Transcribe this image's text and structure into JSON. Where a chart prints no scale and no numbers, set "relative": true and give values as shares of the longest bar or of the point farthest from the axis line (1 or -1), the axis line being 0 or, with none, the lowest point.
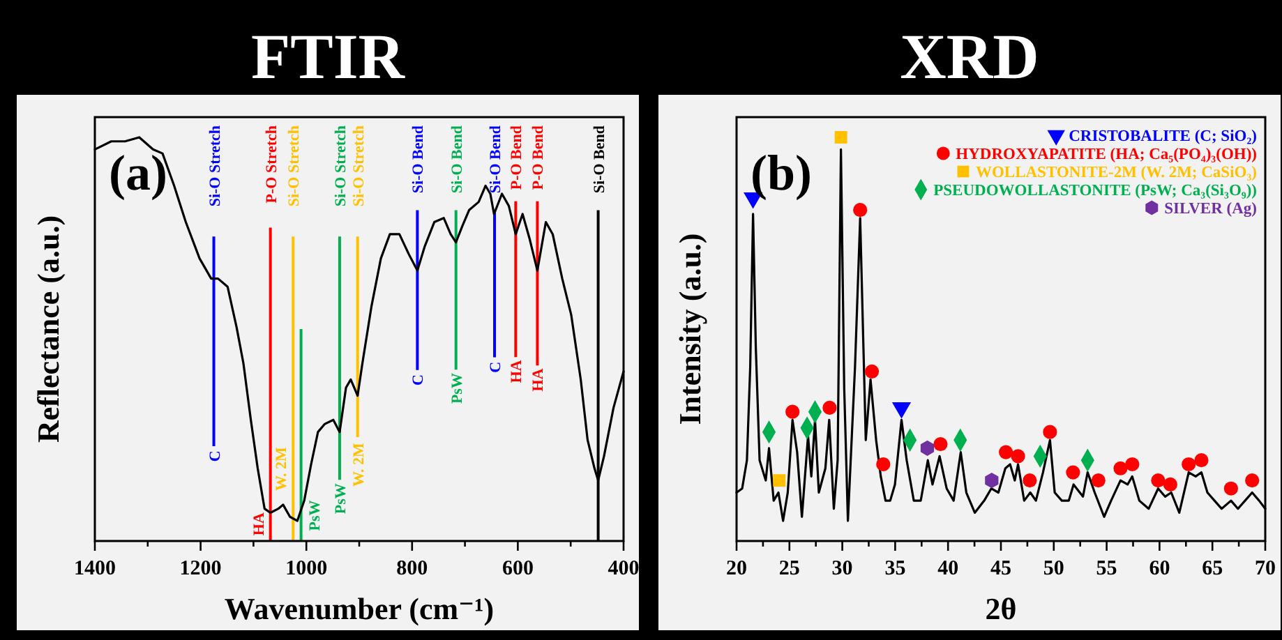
{
  "chart_data": [
    {
      "type": "line",
      "title": "FTIR",
      "xlabel": "Wavenumber (cm⁻¹)",
      "ylabel": "Reflectance (a.u.)",
      "relative": true,
      "tick_labels": "x",
      "xlim": [
        1400,
        400
      ],
      "xticks": [
        1400,
        {
          "value": 1300,
          "label": null
        },
        1200,
        {
          "value": 1100,
          "label": null
        },
        1000,
        {
          "value": 900,
          "label": null
        },
        800,
        {
          "value": 700,
          "label": null
        },
        600,
        {
          "value": 500,
          "label": null
        },
        400
      ],
      "series": [
        {
          "color": "#000000",
          "x": [
            1400,
            1369,
            1343,
            1316,
            1290,
            1272,
            1250,
            1228,
            1202,
            1180,
            1167,
            1149,
            1132,
            1119,
            1105,
            1092,
            1079,
            1068,
            1053,
            1044,
            1031,
            1017,
            1004,
            991,
            978,
            965,
            949,
            937,
            925,
            916,
            903,
            894,
            877,
            859,
            842,
            824,
            806,
            790,
            776,
            758,
            740,
            727,
            717,
            705,
            692,
            674,
            661,
            652,
            645,
            630,
            617,
            604,
            591,
            578,
            563,
            547,
            534,
            516,
            499,
            481,
            468,
            455,
            448,
            437,
            419,
            400
          ],
          "values": [
            0.97,
            0.99,
            0.99,
            1,
            0.97,
            0.96,
            0.88,
            0.79,
            0.7,
            0.65,
            0.65,
            0.63,
            0.53,
            0.44,
            0.3,
            0.18,
            0.08,
            0.07,
            0.08,
            0.09,
            0.06,
            0.05,
            0.1,
            0.19,
            0.27,
            0.29,
            0.3,
            0.27,
            0.38,
            0.4,
            0.36,
            0.44,
            0.58,
            0.7,
            0.76,
            0.76,
            0.71,
            0.67,
            0.73,
            0.79,
            0.8,
            0.76,
            0.74,
            0.78,
            0.82,
            0.84,
            0.88,
            0.86,
            0.81,
            0.86,
            0.83,
            0.76,
            0.81,
            0.75,
            0.67,
            0.79,
            0.76,
            0.65,
            0.56,
            0.4,
            0.25,
            0.18,
            0.15,
            0.21,
            0.33,
            0.42
          ]
        }
      ],
      "ref_lines": [
        {
          "axis": "x",
          "value": 1175,
          "label": "Si-O Stretch",
          "color": "#0000ff"
        },
        {
          "axis": "x",
          "value": 1068,
          "label": "P-O Stretch",
          "color": "#ff0000"
        },
        {
          "axis": "x",
          "value": 1025,
          "label": "Si-O Stretch",
          "color": "#ffc000"
        },
        {
          "axis": "x",
          "value": 1010,
          "color": "#00b050"
        },
        {
          "axis": "x",
          "value": 937,
          "label": "Si-O Stretch",
          "color": "#00b050"
        },
        {
          "axis": "x",
          "value": 903,
          "label": "Si-O Stretch",
          "color": "#ffc000"
        },
        {
          "axis": "x",
          "value": 790,
          "label": "Si-O Bend",
          "color": "#0000ff"
        },
        {
          "axis": "x",
          "value": 717,
          "label": "Si-O Bend",
          "color": "#00b050"
        },
        {
          "axis": "x",
          "value": 644,
          "label": "Si-O Bend",
          "color": "#0000ff"
        },
        {
          "axis": "x",
          "value": 604,
          "label": "P-O Bend",
          "color": "#ff0000"
        },
        {
          "axis": "x",
          "value": 563,
          "label": "P-O Bend",
          "color": "#ff0000"
        },
        {
          "axis": "x",
          "value": 448,
          "label": "Si-O Bend",
          "color": "#000000"
        }
      ],
      "annotations": [
        "(a)",
        "C",
        "HA",
        "W. 2M",
        "PsW",
        "PsW",
        "W. 2M",
        "C",
        "PsW",
        "C",
        "HA",
        "HA"
      ]
    },
    {
      "type": "line",
      "title": "XRD",
      "xlabel": "2θ",
      "ylabel": "Intensity (a.u.)",
      "relative": true,
      "tick_labels": "x",
      "legend": "top right",
      "xlim": [
        20,
        70
      ],
      "xticks": [
        20,
        {
          "value": 22.5,
          "label": null
        },
        25,
        {
          "value": 27.5,
          "label": null
        },
        30,
        {
          "value": 32.5,
          "label": null
        },
        35,
        {
          "value": 37.5,
          "label": null
        },
        40,
        {
          "value": 42.5,
          "label": null
        },
        45,
        {
          "value": 47.5,
          "label": null
        },
        50,
        {
          "value": 52.5,
          "label": null
        },
        55,
        {
          "value": 57.5,
          "label": null
        },
        60,
        {
          "value": 62.5,
          "label": null
        },
        65,
        {
          "value": 67.5,
          "label": null
        },
        70
      ],
      "series": [
        {
          "color": "#000000",
          "x": [
            20,
            20.53,
            20.98,
            21.29,
            21.56,
            21.82,
            22.18,
            22.76,
            23.07,
            23.51,
            23.96,
            24.4,
            24.84,
            25.29,
            25.73,
            26.18,
            26.76,
            27.07,
            27.42,
            27.78,
            28.4,
            28.76,
            29.2,
            29.56,
            29.87,
            30.18,
            30.53,
            31.2,
            31.69,
            32.22,
            32.67,
            33.2,
            33.64,
            34.09,
            34.53,
            34.98,
            35.6,
            36.09,
            36.76,
            37.42,
            38.09,
            38.53,
            39.2,
            39.87,
            40.53,
            41.2,
            41.73,
            42.53,
            43.42,
            44.09,
            44.76,
            45.42,
            45.87,
            46.31,
            46.62,
            47.2,
            47.78,
            48.31,
            48.98,
            49.64,
            50.09,
            50.76,
            51.42,
            51.87,
            52.76,
            53.2,
            53.87,
            54.76,
            55.42,
            56.31,
            56.98,
            57.42,
            58.09,
            58.98,
            59.87,
            60.53,
            61.11,
            61.87,
            62.76,
            63.42,
            63.96,
            64.53,
            65.2,
            65.87,
            66.76,
            67.42,
            68.09,
            68.76,
            69.42,
            70
          ],
          "values": [
            0.12,
            0.13,
            0.2,
            0.43,
            0.81,
            0.48,
            0.2,
            0.15,
            0.23,
            0.1,
            0.12,
            0.05,
            0.12,
            0.3,
            0.22,
            0.06,
            0.26,
            0.16,
            0.3,
            0.12,
            0.18,
            0.3,
            0.08,
            0.2,
            0.97,
            0.38,
            0.05,
            0.43,
            0.8,
            0.25,
            0.4,
            0.25,
            0.16,
            0.1,
            0.1,
            0.14,
            0.3,
            0.2,
            0.1,
            0.1,
            0.2,
            0.14,
            0.21,
            0.13,
            0.1,
            0.22,
            0.12,
            0.07,
            0.1,
            0.13,
            0.12,
            0.18,
            0.19,
            0.15,
            0.19,
            0.1,
            0.12,
            0.1,
            0.17,
            0.25,
            0.12,
            0.1,
            0.1,
            0.14,
            0.11,
            0.17,
            0.12,
            0.06,
            0.1,
            0.15,
            0.14,
            0.16,
            0.1,
            0.08,
            0.13,
            0.11,
            0.12,
            0.07,
            0.17,
            0.16,
            0.17,
            0.12,
            0.1,
            0.08,
            0.1,
            0.08,
            0.1,
            0.12,
            0.1,
            0.08
          ]
        },
        {
          "type": "scatter",
          "name": "CRISTOBALITE (C; SiO₂)",
          "color": "#0000ff",
          "marker": "triangle",
          "x": [
            21.56,
            35.6
          ],
          "values": [
            0.85,
            0.33
          ]
        },
        {
          "type": "scatter",
          "name": "HYDROXYAPATITE (HA; Ca₅(PO₄)₃(OH))",
          "color": "#ff0000",
          "marker": "circle",
          "x": [
            25.29,
            28.8,
            31.69,
            32.8,
            33.87,
            39.29,
            45.47,
            46.62,
            47.73,
            49.64,
            51.82,
            54.22,
            56.31,
            57.42,
            59.87,
            61.02,
            62.76,
            63.96,
            66.76,
            68.76
          ],
          "values": [
            0.32,
            0.33,
            0.82,
            0.42,
            0.19,
            0.24,
            0.22,
            0.21,
            0.15,
            0.27,
            0.17,
            0.15,
            0.18,
            0.19,
            0.15,
            0.14,
            0.19,
            0.2,
            0.13,
            0.15
          ]
        },
        {
          "type": "scatter",
          "name": "WOLLASTONITE-2M (W. 2M; CaSiO₃)",
          "color": "#ffc000",
          "marker": "square",
          "x": [
            29.87,
            24.04
          ],
          "values": [
            1,
            0.15
          ]
        },
        {
          "type": "scatter",
          "name": "PSEUDOWOLLASTONITE (PsW; Ca₃(Si₃O₉))",
          "color": "#00b050",
          "marker": "diamond",
          "x": [
            23.07,
            26.67,
            27.42,
            36.4,
            41.16,
            48.71,
            53.2
          ],
          "values": [
            0.27,
            0.28,
            0.32,
            0.25,
            0.25,
            0.21,
            0.2
          ]
        },
        {
          "type": "scatter",
          "name": "SILVER (Ag)",
          "color": "#7030a0",
          "x": [
            38.04,
            44.13
          ],
          "values": [
            0.23,
            0.15
          ]
        }
      ],
      "annotations": [
        "(b)"
      ]
    }
  ]
}
